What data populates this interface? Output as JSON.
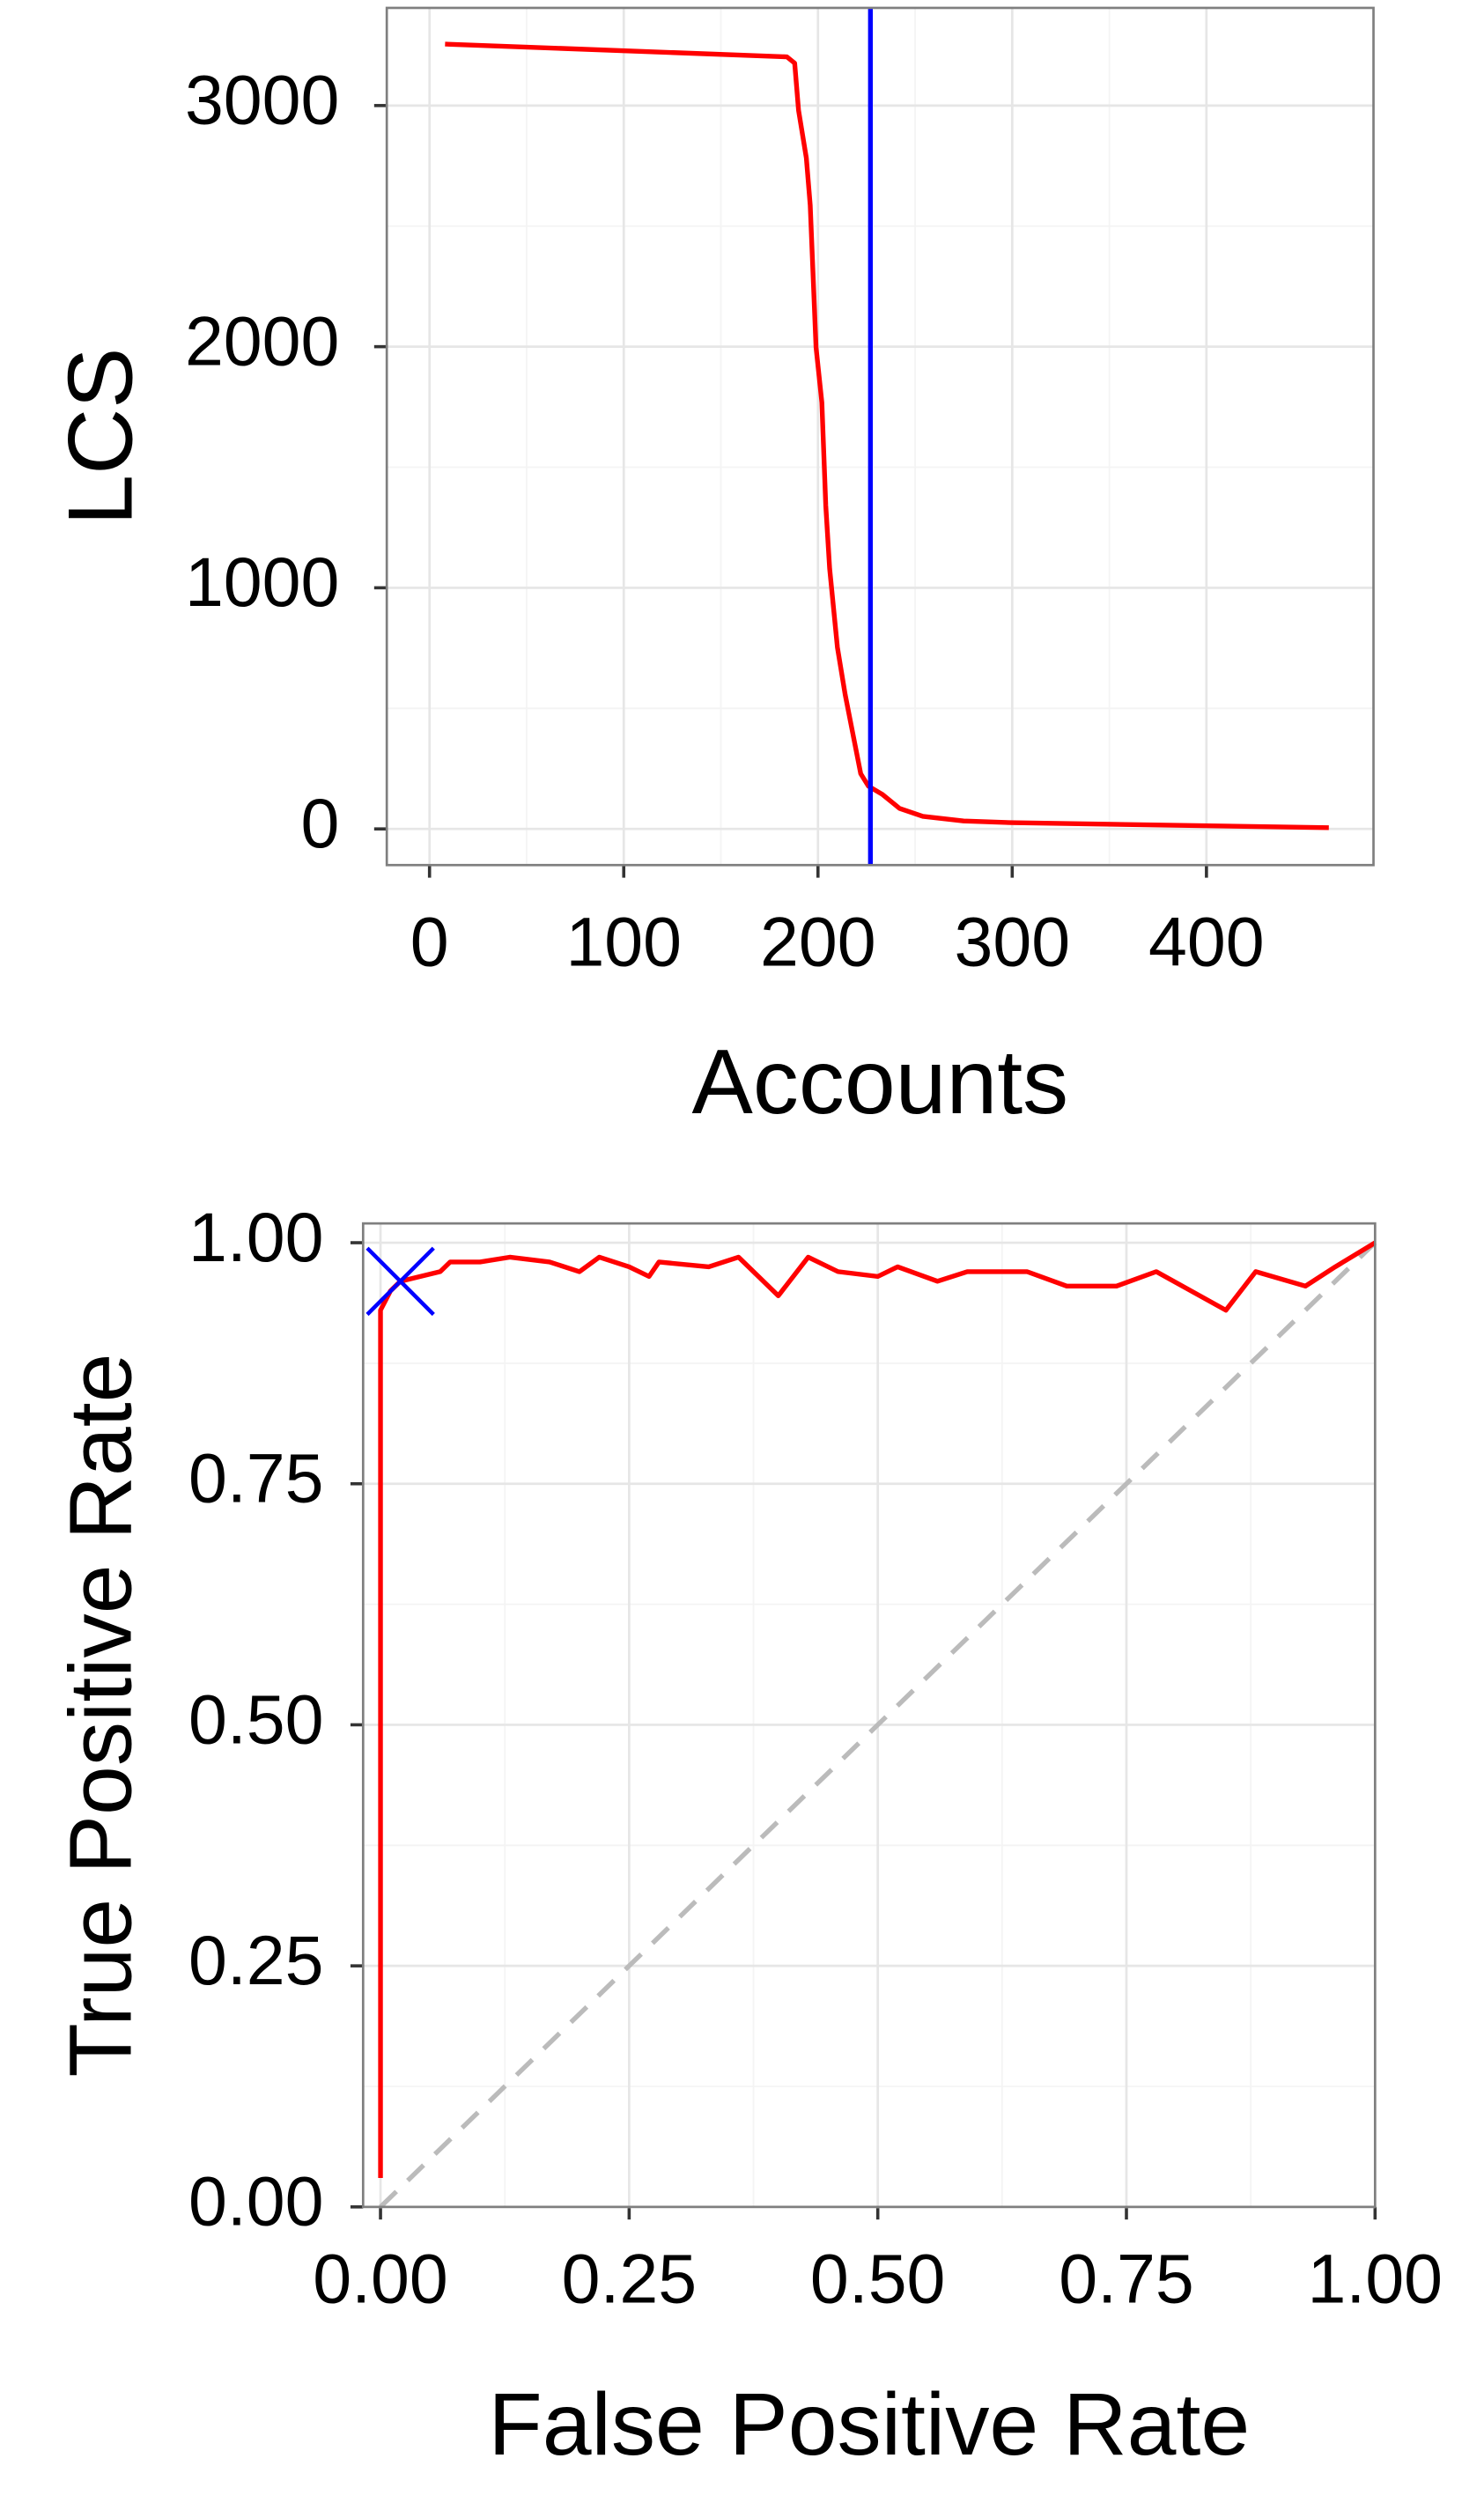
{
  "chart_data": [
    {
      "type": "line",
      "x_label": "Accounts",
      "y_label": "LCS",
      "x": [
        8,
        184,
        188,
        190,
        194,
        196,
        199,
        202,
        204,
        206,
        210,
        214,
        218,
        222,
        226,
        233,
        242,
        254,
        275,
        299,
        463
      ],
      "values": [
        3255,
        3202,
        3176,
        2980,
        2783,
        2587,
        1997,
        1768,
        1342,
        1080,
        753,
        557,
        393,
        229,
        177,
        144,
        85,
        52,
        33,
        26,
        5
      ],
      "color": "#ff0000",
      "xlim": [
        -22,
        486
      ],
      "ylim": [
        -150,
        3405
      ],
      "xticks": [
        0,
        100,
        200,
        300,
        400
      ],
      "yticks": [
        0,
        1000,
        2000,
        3000
      ],
      "grid": true,
      "vline": {
        "x": 227,
        "color": "#0000ff"
      }
    },
    {
      "type": "line",
      "x_label": "False Positive Rate",
      "y_label": "True Positive Rate",
      "x": [
        0,
        0,
        0.01,
        0.02,
        0.04,
        0.06,
        0.07,
        0.1,
        0.13,
        0.17,
        0.2,
        0.22,
        0.25,
        0.27,
        0.28,
        0.33,
        0.36,
        0.4,
        0.43,
        0.46,
        0.5,
        0.52,
        0.56,
        0.59,
        0.65,
        0.69,
        0.74,
        0.78,
        0.85,
        0.88,
        0.93,
        0.96,
        1
      ],
      "values": [
        0.03,
        0.93,
        0.95,
        0.96,
        0.965,
        0.97,
        0.98,
        0.98,
        0.985,
        0.98,
        0.97,
        0.985,
        0.975,
        0.965,
        0.98,
        0.975,
        0.985,
        0.945,
        0.985,
        0.97,
        0.965,
        0.975,
        0.96,
        0.97,
        0.97,
        0.955,
        0.955,
        0.97,
        0.93,
        0.97,
        0.955,
        0.975,
        1
      ],
      "color": "#ff0000",
      "xlim": [
        -0.0175,
        1.0
      ],
      "ylim": [
        0,
        1.02
      ],
      "xticks": [
        {
          "value": 0,
          "label": "0.00"
        },
        {
          "value": 0.25,
          "label": "0.25"
        },
        {
          "value": 0.5,
          "label": "0.50"
        },
        {
          "value": 0.75,
          "label": "0.75"
        },
        {
          "value": 1,
          "label": "1.00"
        }
      ],
      "yticks": [
        {
          "value": 0,
          "label": "0.00"
        },
        {
          "value": 0.25,
          "label": "0.25"
        },
        {
          "value": 0.5,
          "label": "0.50"
        },
        {
          "value": 0.75,
          "label": "0.75"
        },
        {
          "value": 1,
          "label": "1.00"
        }
      ],
      "grid": true,
      "diagonal": {
        "x": [
          0,
          1
        ],
        "y": [
          0,
          1
        ],
        "color": "#bbbbbb"
      },
      "marker": {
        "x": 0.02,
        "y": 0.96,
        "color": "#0000ff"
      }
    }
  ]
}
